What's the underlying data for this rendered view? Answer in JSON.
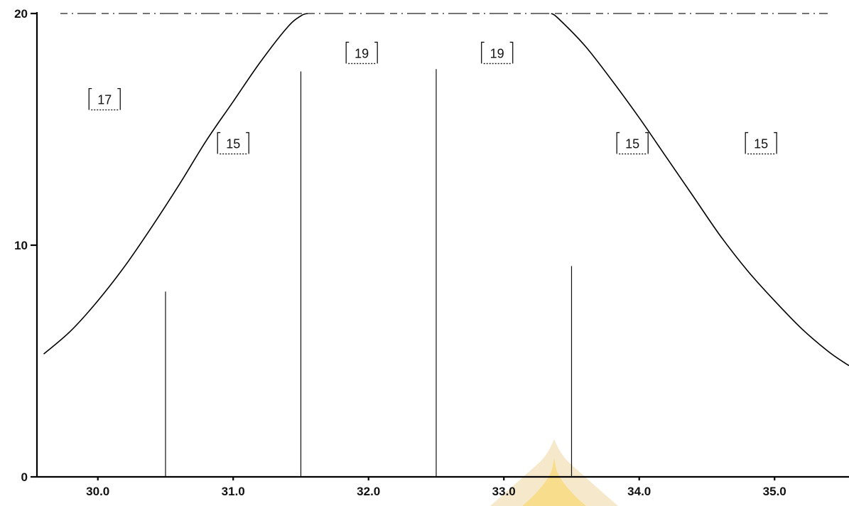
{
  "chart_data": {
    "type": "line",
    "xlim": [
      29.55,
      35.55
    ],
    "ylim": [
      0,
      20
    ],
    "x_ticks": [
      "30.0",
      "31.0",
      "32.0",
      "33.0",
      "34.0",
      "35.0"
    ],
    "y_ticks": [
      "0",
      "10",
      "20"
    ],
    "grid": false,
    "series": [
      {
        "x": [
          29.6,
          29.8,
          30.0,
          30.2,
          30.4,
          30.6,
          30.8,
          31.0,
          31.2,
          31.4,
          31.5,
          31.55
        ],
        "y": [
          5.3,
          6.3,
          7.6,
          9.1,
          10.8,
          12.6,
          14.5,
          16.2,
          17.9,
          19.4,
          19.9,
          20.0
        ]
      },
      {
        "x": [
          33.35,
          33.4,
          33.6,
          33.8,
          34.0,
          34.2,
          34.4,
          34.6,
          34.8,
          35.0,
          35.2,
          35.4,
          35.55
        ],
        "y": [
          20.0,
          19.8,
          18.6,
          17.1,
          15.5,
          13.8,
          12.1,
          10.4,
          8.9,
          7.6,
          6.4,
          5.4,
          4.8
        ]
      }
    ],
    "peaks": [
      {
        "x": 30.5,
        "y": 8.0
      },
      {
        "x": 31.5,
        "y": 17.5
      },
      {
        "x": 32.5,
        "y": 17.6
      },
      {
        "x": 33.5,
        "y": 9.1
      }
    ],
    "annotations": [
      {
        "text": "17",
        "x": 30.05,
        "y": 16.3
      },
      {
        "x": 31.0,
        "y": 14.4,
        "text": "15"
      },
      {
        "x": 31.95,
        "y": 18.3,
        "text": "19"
      },
      {
        "x": 32.95,
        "y": 18.3,
        "text": "19"
      },
      {
        "x": 33.95,
        "y": 14.4,
        "text": "15"
      },
      {
        "x": 34.9,
        "y": 14.4,
        "text": "15"
      }
    ]
  }
}
